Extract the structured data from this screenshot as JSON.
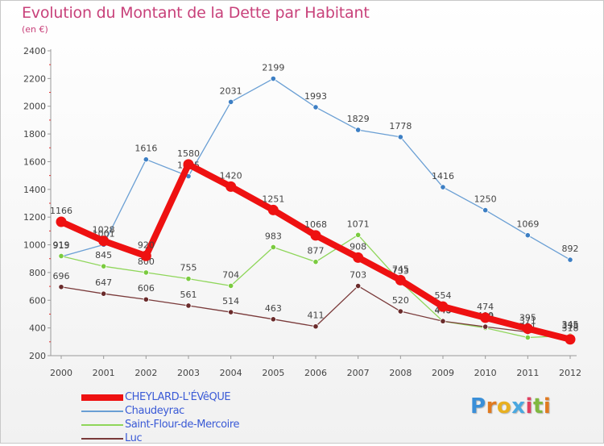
{
  "chart_data": {
    "type": "line",
    "title": "Evolution du Montant de la Dette par Habitant",
    "subtitle": "(en €)",
    "x": [
      "2000",
      "2001",
      "2002",
      "2003",
      "2004",
      "2005",
      "2006",
      "2007",
      "2008",
      "2009",
      "2010",
      "2011",
      "2012"
    ],
    "ylim": [
      200,
      2400
    ],
    "yticks": [
      200,
      400,
      600,
      800,
      1000,
      1200,
      1400,
      1600,
      1800,
      2000,
      2200,
      2400
    ],
    "grid": false,
    "legend_position": "bottom-left",
    "series": [
      {
        "name": "Chaudeyrac",
        "color": "#6a9fd4",
        "marker": "#3d7fc4",
        "values": [
          915,
          1001,
          1616,
          1495,
          2031,
          2199,
          1993,
          1829,
          1778,
          1416,
          1250,
          1069,
          892
        ]
      },
      {
        "name": "Saint-Flour-de-Mercoire",
        "color": "#8fd65a",
        "marker": "#7acb3f",
        "values": [
          919,
          845,
          800,
          755,
          704,
          983,
          877,
          1071,
          733,
          448,
          400,
          331,
          345
        ]
      },
      {
        "name": "Luc",
        "color": "#7a3a3a",
        "marker": "#6a2b2b",
        "values": [
          696,
          647,
          606,
          561,
          514,
          463,
          411,
          703,
          520,
          449,
          409,
          371,
          338
        ]
      },
      {
        "name": "CHEYLARD-L'ÉVêQUE",
        "color": "#ee1111",
        "marker": "#ee1111",
        "values": [
          1166,
          1028,
          920,
          1580,
          1420,
          1251,
          1068,
          908,
          745,
          554,
          474,
          395,
          318
        ]
      }
    ]
  },
  "legend": [
    {
      "label": "CHEYLARD-L'ÉVêQUE",
      "color": "#ee1111",
      "thickness": 8
    },
    {
      "label": "Chaudeyrac",
      "color": "#6a9fd4",
      "thickness": 2
    },
    {
      "label": "Saint-Flour-de-Mercoire",
      "color": "#8fd65a",
      "thickness": 2
    },
    {
      "label": "Luc",
      "color": "#7a3a3a",
      "thickness": 2
    }
  ],
  "brand": {
    "letters": [
      "P",
      "r",
      "o",
      "x",
      "i",
      "t",
      "i"
    ],
    "colors": [
      "#3a8fd8",
      "#e07a20",
      "#e8b020",
      "#4aa8e0",
      "#e04060",
      "#80b840",
      "#e07a20"
    ]
  }
}
